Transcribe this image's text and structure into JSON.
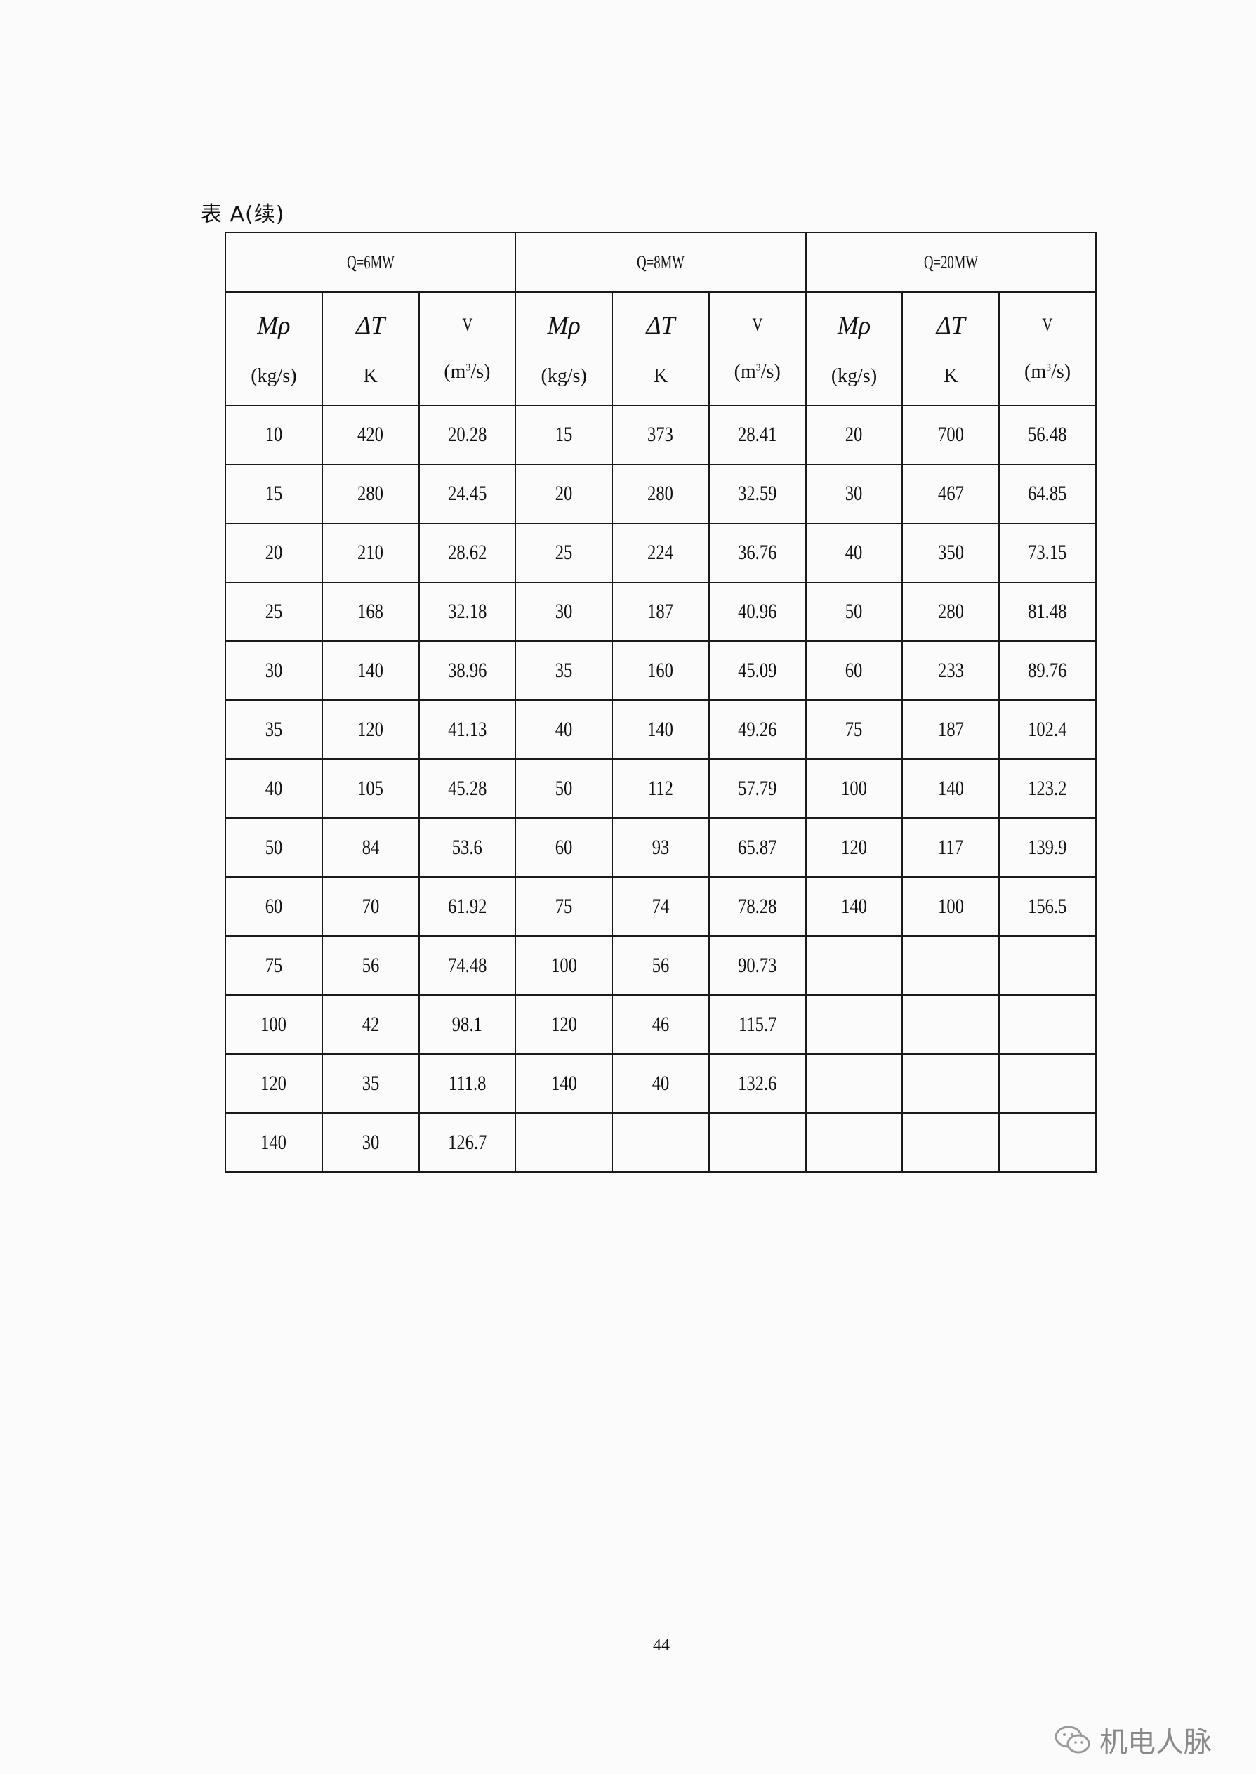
{
  "caption": "表 A(续)",
  "groups": [
    "Q=6MW",
    "Q=8MW",
    "Q=20MW"
  ],
  "columns": {
    "m_symbol": "Mρ",
    "m_unit": "(kg/s)",
    "t_symbol": "ΔT",
    "t_unit": "K",
    "v_symbol": "V",
    "v_unit_pre": "(m",
    "v_unit_sup": "3",
    "v_unit_post": "/s)"
  },
  "rows": [
    [
      "10",
      "420",
      "20.28",
      "15",
      "373",
      "28.41",
      "20",
      "700",
      "56.48"
    ],
    [
      "15",
      "280",
      "24.45",
      "20",
      "280",
      "32.59",
      "30",
      "467",
      "64.85"
    ],
    [
      "20",
      "210",
      "28.62",
      "25",
      "224",
      "36.76",
      "40",
      "350",
      "73.15"
    ],
    [
      "25",
      "168",
      "32.18",
      "30",
      "187",
      "40.96",
      "50",
      "280",
      "81.48"
    ],
    [
      "30",
      "140",
      "38.96",
      "35",
      "160",
      "45.09",
      "60",
      "233",
      "89.76"
    ],
    [
      "35",
      "120",
      "41.13",
      "40",
      "140",
      "49.26",
      "75",
      "187",
      "102.4"
    ],
    [
      "40",
      "105",
      "45.28",
      "50",
      "112",
      "57.79",
      "100",
      "140",
      "123.2"
    ],
    [
      "50",
      "84",
      "53.6",
      "60",
      "93",
      "65.87",
      "120",
      "117",
      "139.9"
    ],
    [
      "60",
      "70",
      "61.92",
      "75",
      "74",
      "78.28",
      "140",
      "100",
      "156.5"
    ],
    [
      "75",
      "56",
      "74.48",
      "100",
      "56",
      "90.73",
      "",
      "",
      ""
    ],
    [
      "100",
      "42",
      "98.1",
      "120",
      "46",
      "115.7",
      "",
      "",
      ""
    ],
    [
      "120",
      "35",
      "111.8",
      "140",
      "40",
      "132.6",
      "",
      "",
      ""
    ],
    [
      "140",
      "30",
      "126.7",
      "",
      "",
      "",
      "",
      "",
      ""
    ]
  ],
  "page_number": "44",
  "watermark": {
    "icon": "wechat-icon",
    "text": "机电人脉"
  }
}
